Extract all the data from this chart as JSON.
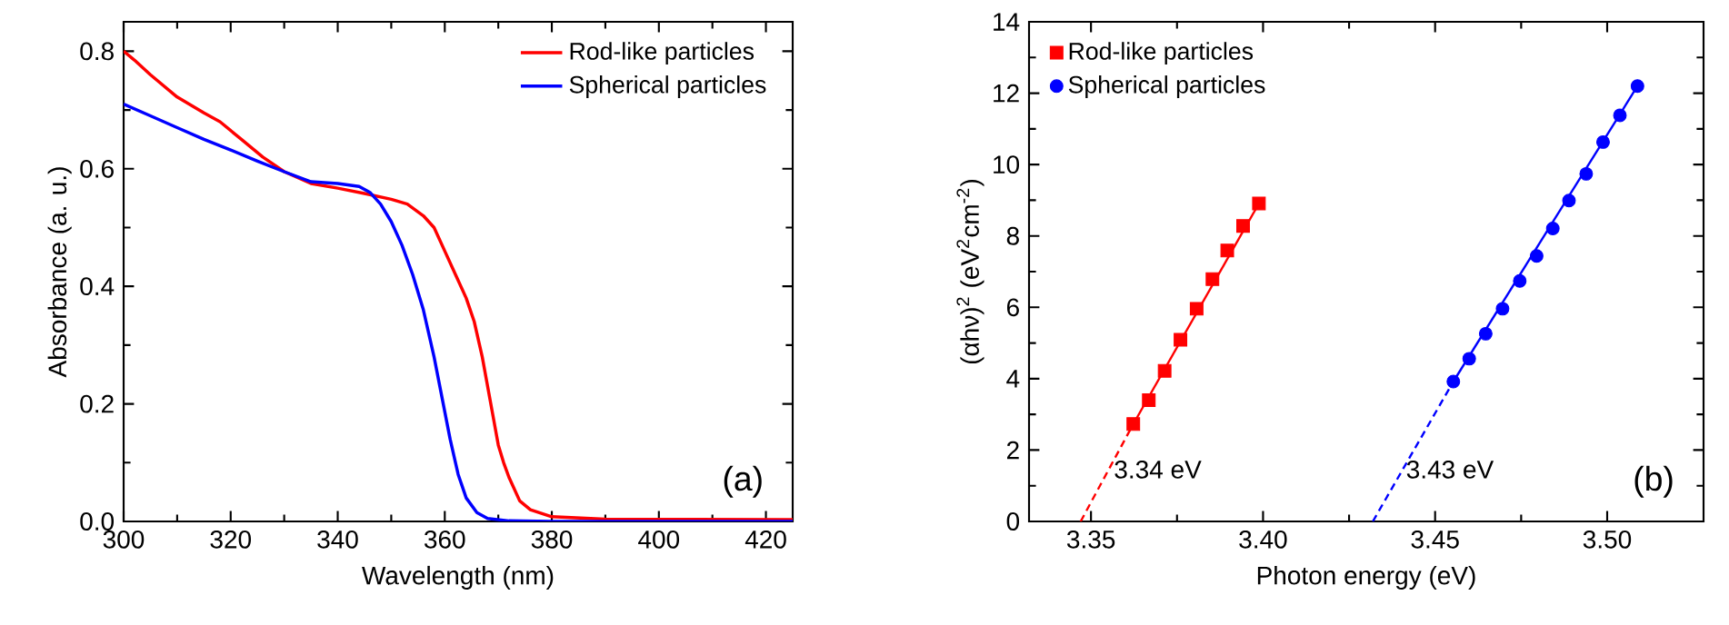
{
  "chart_data": [
    {
      "type": "line",
      "xlabel": "Wavelength (nm)",
      "ylabel": "Absorbance (a. u.)",
      "xlim": [
        300,
        425
      ],
      "ylim": [
        0,
        0.85
      ],
      "xticks": [
        300,
        320,
        340,
        360,
        380,
        400,
        420
      ],
      "yticks": [
        {
          "value": 0,
          "label": "0.0"
        },
        {
          "value": 0.2,
          "label": "0.2"
        },
        {
          "value": 0.4,
          "label": "0.4"
        },
        {
          "value": 0.6,
          "label": "0.6"
        },
        {
          "value": 0.8,
          "label": "0.8"
        }
      ],
      "legend": "top right",
      "annotations": [
        "(a)"
      ],
      "series": [
        {
          "name": "Rod-like particles",
          "color": "#ff0000",
          "x": [
            300,
            302,
            305,
            310,
            315,
            318,
            322,
            326,
            330,
            335,
            340,
            345,
            350,
            353,
            356,
            358,
            360,
            362,
            364,
            365.5,
            367,
            368,
            369,
            370,
            371,
            372,
            374,
            376,
            380,
            390,
            425
          ],
          "values": [
            0.8,
            0.785,
            0.76,
            0.722,
            0.695,
            0.68,
            0.65,
            0.62,
            0.595,
            0.575,
            0.567,
            0.558,
            0.548,
            0.54,
            0.52,
            0.5,
            0.46,
            0.42,
            0.38,
            0.34,
            0.28,
            0.23,
            0.18,
            0.13,
            0.1,
            0.075,
            0.035,
            0.02,
            0.008,
            0.004,
            0.003
          ]
        },
        {
          "name": "Spherical particles",
          "color": "#0000ff",
          "x": [
            300,
            305,
            310,
            315,
            320,
            325,
            330,
            335,
            340,
            344,
            346,
            348,
            350,
            352,
            354,
            356,
            358,
            359.5,
            361,
            362.5,
            364,
            366,
            368,
            372,
            380,
            425
          ],
          "values": [
            0.71,
            0.69,
            0.67,
            0.65,
            0.632,
            0.613,
            0.595,
            0.578,
            0.575,
            0.57,
            0.56,
            0.54,
            0.51,
            0.47,
            0.42,
            0.36,
            0.28,
            0.21,
            0.14,
            0.08,
            0.04,
            0.015,
            0.005,
            0.001,
            0,
            0
          ]
        }
      ]
    },
    {
      "type": "scatter",
      "xlabel": "Photon energy (eV)",
      "ylabel": "(αhν)$^{2}$ (eV$^{2}$cm$^{-2}$)",
      "xlim": [
        3.332,
        3.528
      ],
      "ylim": [
        0,
        14
      ],
      "xticks": [
        {
          "value": 3.35,
          "label": "3.35"
        },
        {
          "value": 3.4,
          "label": "3.40"
        },
        {
          "value": 3.45,
          "label": "3.45"
        },
        {
          "value": 3.5,
          "label": "3.50"
        }
      ],
      "yticks": [
        0,
        2,
        4,
        6,
        8,
        10,
        12,
        14
      ],
      "legend": "top left",
      "annotations": [
        {
          "text": "3.34 eV",
          "x": 3.347,
          "y": 0
        },
        {
          "text": "3.43 eV",
          "x": 3.4319,
          "y": 0
        },
        "(b)"
      ],
      "series": [
        {
          "name": "Rod-like particles",
          "color": "#ff0000",
          "marker": "square",
          "x": [
            3.3623,
            3.3668,
            3.3714,
            3.376,
            3.3807,
            3.3853,
            3.3896,
            3.3942,
            3.3988
          ],
          "values": [
            2.73,
            3.4,
            4.22,
            5.09,
            5.96,
            6.79,
            7.59,
            8.28,
            8.91
          ]
        },
        {
          "name": "Spherical particles",
          "color": "#0000ff",
          "marker": "circle",
          "x": [
            3.4553,
            3.4599,
            3.4647,
            3.4696,
            3.4746,
            3.4795,
            3.4842,
            3.4889,
            3.4939,
            3.4988,
            3.5037,
            3.5088
          ],
          "values": [
            3.92,
            4.56,
            5.26,
            5.96,
            6.74,
            7.44,
            8.21,
            8.99,
            9.74,
            10.63,
            11.38,
            12.2
          ]
        },
        {
          "type": "line",
          "color": "#ff0000",
          "line_style": "solid",
          "x": [
            3.3623,
            3.3988
          ],
          "values": [
            2.73,
            8.91
          ]
        },
        {
          "type": "line",
          "color": "#ff0000",
          "line_style": "dashed",
          "x": [
            3.347,
            3.3623
          ],
          "values": [
            0,
            2.73
          ]
        },
        {
          "type": "line",
          "color": "#0000ff",
          "line_style": "solid",
          "x": [
            3.4553,
            3.5088
          ],
          "values": [
            3.92,
            12.2
          ]
        },
        {
          "type": "line",
          "color": "#0000ff",
          "line_style": "dashed",
          "x": [
            3.4319,
            3.4553
          ],
          "values": [
            0,
            3.92
          ]
        }
      ]
    }
  ]
}
